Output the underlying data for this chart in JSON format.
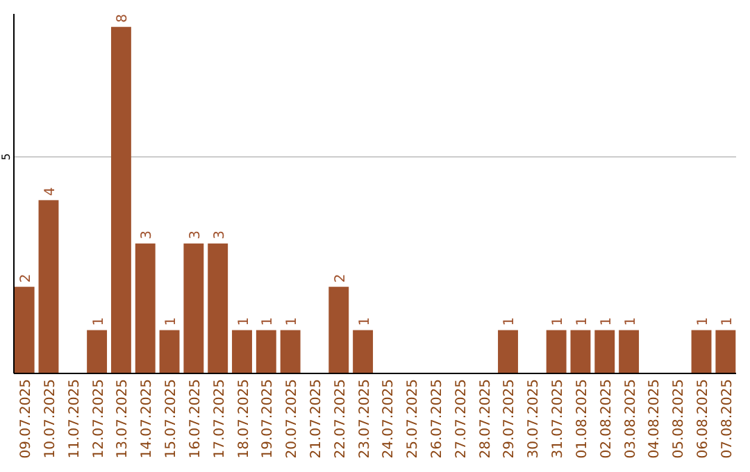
{
  "chart_data": {
    "type": "bar",
    "categories": [
      "09.07.2025",
      "10.07.2025",
      "11.07.2025",
      "12.07.2025",
      "13.07.2025",
      "14.07.2025",
      "15.07.2025",
      "16.07.2025",
      "17.07.2025",
      "18.07.2025",
      "19.07.2025",
      "20.07.2025",
      "21.07.2025",
      "22.07.2025",
      "23.07.2025",
      "24.07.2025",
      "25.07.2025",
      "26.07.2025",
      "27.07.2025",
      "28.07.2025",
      "29.07.2025",
      "30.07.2025",
      "31.07.2025",
      "01.08.2025",
      "02.08.2025",
      "03.08.2025",
      "04.08.2025",
      "05.08.2025",
      "06.08.2025",
      "07.08.2025"
    ],
    "values": [
      2,
      4,
      0,
      1,
      8,
      3,
      1,
      3,
      3,
      1,
      1,
      1,
      0,
      2,
      1,
      0,
      0,
      0,
      0,
      0,
      1,
      0,
      1,
      1,
      1,
      1,
      0,
      0,
      1,
      1
    ],
    "value_labels": [
      "2",
      "4",
      null,
      "1",
      "8",
      "3",
      "1",
      "3",
      "3",
      "1",
      "1",
      "1",
      null,
      "2",
      "1",
      null,
      null,
      null,
      null,
      null,
      "1",
      null,
      "1",
      "1",
      "1",
      "1",
      null,
      null,
      "1",
      "1"
    ],
    "color": "#a0522d",
    "ylim": [
      0,
      8.3
    ],
    "yticks": [
      5
    ],
    "grid": "y"
  }
}
